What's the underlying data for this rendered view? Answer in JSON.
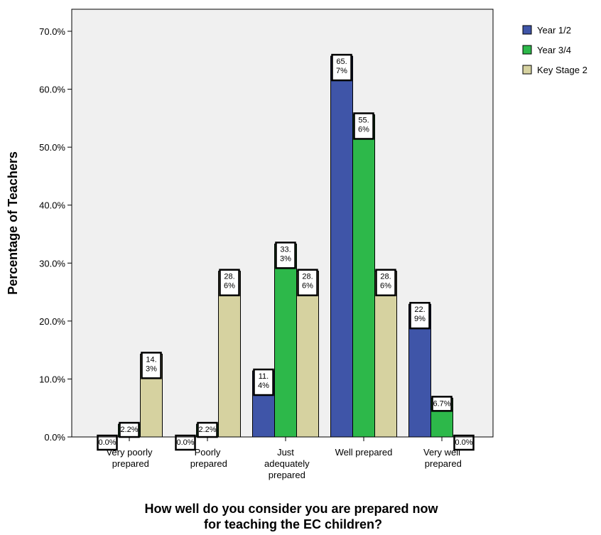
{
  "chart_data": {
    "type": "bar",
    "x_label": "How well do you consider you are prepared now\nfor teaching the EC children?",
    "y_label": "Percentage of Teachers",
    "categories": [
      "Very poorly\nprepared",
      "Poorly\nprepared",
      "Just\nadequately\nprepared",
      "Well prepared",
      "Very well\nprepared"
    ],
    "series": [
      {
        "name": "Year 1/2",
        "color": "#3f55a8",
        "values": [
          0.0,
          0.0,
          11.4,
          65.7,
          22.9
        ],
        "value_labels": [
          "0.0%",
          "0.0%",
          "11.4%",
          "65.7%",
          "22.9%"
        ]
      },
      {
        "name": "Year 3/4",
        "color": "#2db84a",
        "values": [
          2.2,
          2.2,
          33.3,
          55.6,
          6.7
        ],
        "value_labels": [
          "2.2%",
          "2.2%",
          "33.3%",
          "55.6%",
          "6.7%"
        ]
      },
      {
        "name": "Key Stage 2",
        "color": "#d6d2a0",
        "values": [
          14.3,
          28.6,
          28.6,
          28.6,
          0.0
        ],
        "value_labels": [
          "14.3%",
          "28.6%",
          "28.6%",
          "28.6%",
          "0.0%"
        ]
      }
    ],
    "ylim": [
      0,
      73.8
    ],
    "yticks": [
      {
        "value": 0,
        "label": "0.0%"
      },
      {
        "value": 10,
        "label": "10.0%"
      },
      {
        "value": 20,
        "label": "20.0%"
      },
      {
        "value": 30,
        "label": "30.0%"
      },
      {
        "value": 40,
        "label": "40.0%"
      },
      {
        "value": 50,
        "label": "50.0%"
      },
      {
        "value": 60,
        "label": "60.0%"
      },
      {
        "value": 70,
        "label": "70.0%"
      }
    ],
    "legend": "right"
  }
}
